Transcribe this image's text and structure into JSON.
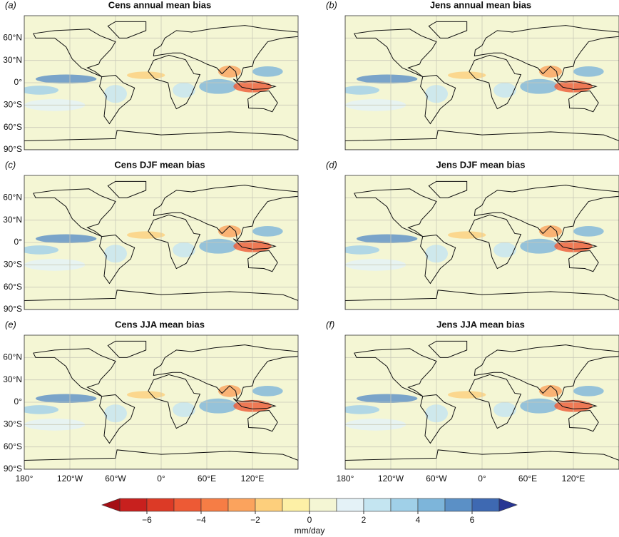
{
  "panels": [
    {
      "label": "(a)",
      "title": "Cens annual mean bias"
    },
    {
      "label": "(b)",
      "title": "Jens annual mean bias"
    },
    {
      "label": "(c)",
      "title": "Cens DJF mean bias"
    },
    {
      "label": "(d)",
      "title": "Jens DJF mean bias"
    },
    {
      "label": "(e)",
      "title": "Cens JJA mean bias"
    },
    {
      "label": "(f)",
      "title": "Jens JJA mean bias"
    }
  ],
  "lon_range": [
    -180,
    180
  ],
  "lat_range": [
    -90,
    90
  ],
  "lon_ticks": [
    {
      "value": -180,
      "label": "180°"
    },
    {
      "value": -120,
      "label": "120°W"
    },
    {
      "value": -60,
      "label": "60°W"
    },
    {
      "value": 0,
      "label": "0°"
    },
    {
      "value": 60,
      "label": "60°E"
    },
    {
      "value": 120,
      "label": "120°E"
    }
  ],
  "lat_ticks": [
    {
      "value": 60,
      "label": "60°N"
    },
    {
      "value": 30,
      "label": "30°N"
    },
    {
      "value": 0,
      "label": "0°"
    },
    {
      "value": -30,
      "label": "30°S"
    },
    {
      "value": -60,
      "label": "60°S"
    },
    {
      "value": -90,
      "label": "90°S"
    }
  ],
  "colorbar": {
    "label": "mm/day",
    "bounds": [
      -7,
      -6,
      -5,
      -4,
      -3,
      -2,
      -1,
      0,
      1,
      2,
      3,
      4,
      5,
      6,
      7
    ],
    "colors": [
      "#c8201e",
      "#dc3a26",
      "#ed5a35",
      "#f67d45",
      "#fba35d",
      "#fdcf7c",
      "#fdf0a6",
      "#f4f6d4",
      "#e4f2f7",
      "#c4e5f1",
      "#a0d0e8",
      "#7db5da",
      "#5b90c6",
      "#3e69b2"
    ],
    "extend_colors": [
      "#a50f15",
      "#283593"
    ],
    "ticks": [
      {
        "value": -6,
        "label": "−6"
      },
      {
        "value": -4,
        "label": "−4"
      },
      {
        "value": -2,
        "label": "−2"
      },
      0,
      2,
      4,
      6
    ]
  }
}
